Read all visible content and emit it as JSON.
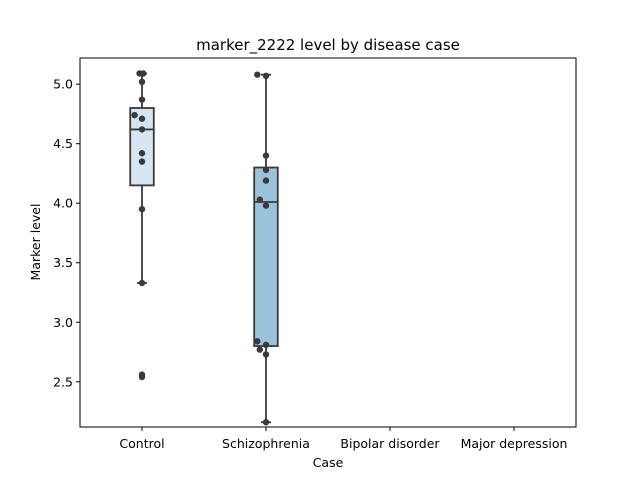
{
  "chart_data": {
    "type": "box",
    "title": "marker_2222 level by disease case",
    "xlabel": "Case",
    "ylabel": "Marker level",
    "ylim": [
      2.12,
      5.22
    ],
    "yticks": [
      2.5,
      3.0,
      3.5,
      4.0,
      4.5,
      5.0
    ],
    "ytick_labels": [
      "2.5",
      "3.0",
      "3.5",
      "4.0",
      "4.5",
      "5.0"
    ],
    "categories": [
      "Control",
      "Schizophrenia",
      "Bipolar disorder",
      "Major depression"
    ],
    "grid": false,
    "legend": "none",
    "boxes": [
      {
        "category": "Control",
        "color": "#d5e5f2",
        "q1": 4.15,
        "median": 4.62,
        "q3": 4.8,
        "whisker_low": 3.33,
        "whisker_high": 5.09,
        "outliers": [
          2.55
        ]
      },
      {
        "category": "Schizophrenia",
        "color": "#9ac3da",
        "q1": 2.8,
        "median": 4.01,
        "q3": 4.3,
        "whisker_low": 2.16,
        "whisker_high": 5.08,
        "outliers": []
      },
      null,
      null
    ],
    "points": [
      {
        "category": "Control",
        "values": [
          5.09,
          5.09,
          5.02,
          4.87,
          4.74,
          4.71,
          4.62,
          4.42,
          4.35,
          3.95,
          3.33,
          2.56,
          2.54
        ],
        "offsets": [
          0.01,
          -0.02,
          0.0,
          0.0,
          -0.06,
          0.0,
          0.0,
          0.0,
          0.0,
          0.0,
          0.0,
          0.0,
          0.0
        ]
      },
      {
        "category": "Schizophrenia",
        "values": [
          5.08,
          5.07,
          4.4,
          4.28,
          4.19,
          4.03,
          3.98,
          2.84,
          2.81,
          2.77,
          2.73,
          2.16
        ],
        "offsets": [
          -0.07,
          0.0,
          0.0,
          0.0,
          0.0,
          -0.05,
          0.0,
          -0.07,
          0.0,
          -0.05,
          0.0,
          0.0
        ]
      }
    ],
    "colors": {
      "box_edge": "#3a3a3a",
      "point": "#3a3a3a",
      "axis": "#000000"
    }
  }
}
